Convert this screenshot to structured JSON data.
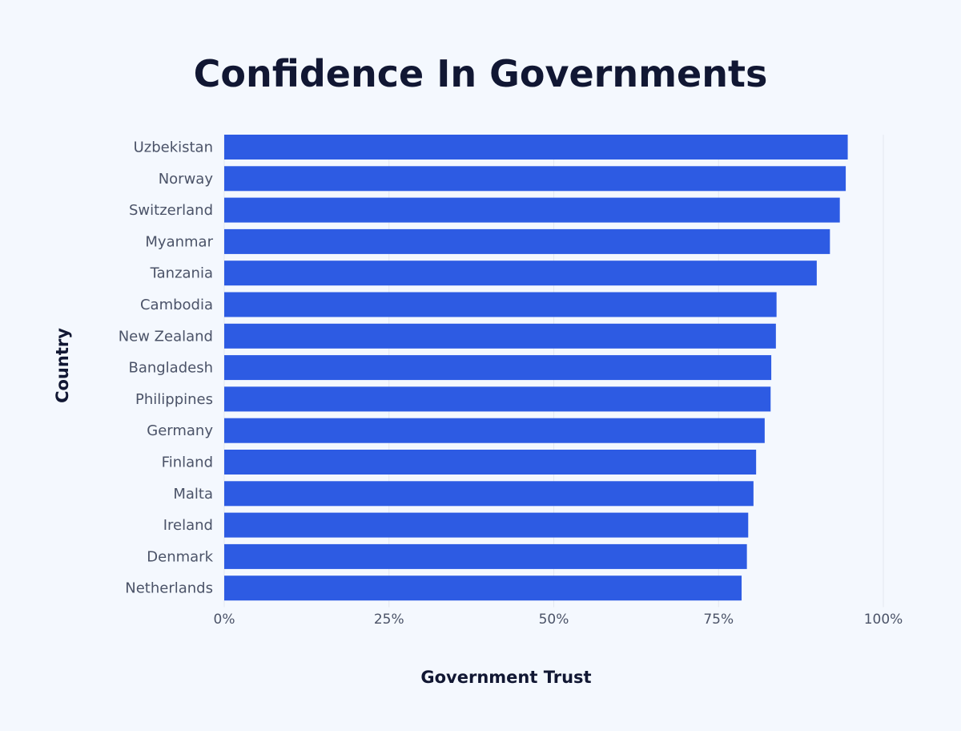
{
  "chart_data": {
    "type": "bar",
    "orientation": "horizontal",
    "title": "Confidence In Governments",
    "xlabel": "Government Trust",
    "ylabel": "Country",
    "categories": [
      "Uzbekistan",
      "Norway",
      "Switzerland",
      "Myanmar",
      "Tanzania",
      "Cambodia",
      "New Zealand",
      "Bangladesh",
      "Philippines",
      "Germany",
      "Finland",
      "Malta",
      "Ireland",
      "Denmark",
      "Netherlands"
    ],
    "values": [
      94.6,
      94.3,
      93.4,
      91.9,
      89.9,
      83.8,
      83.7,
      83.0,
      82.9,
      82.0,
      80.7,
      80.3,
      79.5,
      79.3,
      78.5
    ],
    "xlim": [
      0,
      100
    ],
    "xticks": [
      0,
      25,
      50,
      75,
      100
    ],
    "xtick_labels": [
      "0%",
      "25%",
      "50%",
      "75%",
      "100%"
    ],
    "grid": true,
    "bar_color": "#2d5be3"
  }
}
